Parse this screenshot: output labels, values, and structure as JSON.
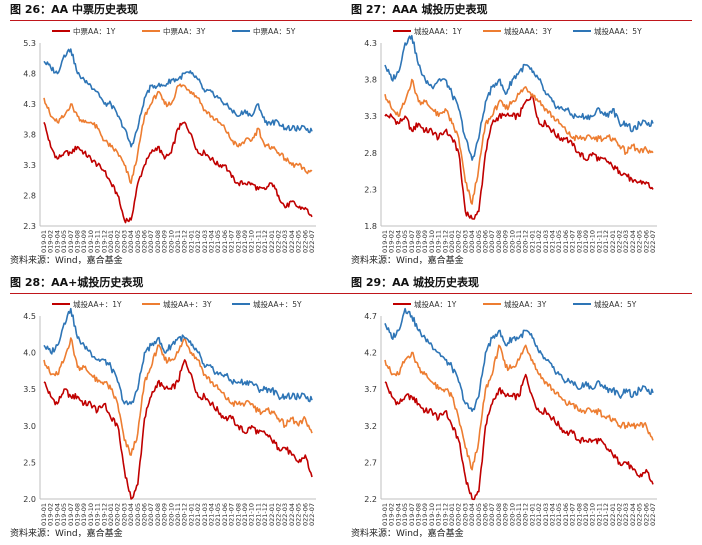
{
  "colors": {
    "s1": "#c00000",
    "s2": "#ed7d31",
    "s3": "#2e75b6",
    "rule": "#c0161b"
  },
  "x_ticks": [
    "2019-01",
    "2019-02",
    "2019-04",
    "2019-05",
    "2019-07",
    "2019-08",
    "2019-09",
    "2019-10",
    "2019-11",
    "2019-12",
    "2020-01",
    "2020-02",
    "2020-03",
    "2020-04",
    "2020-05",
    "2020-06",
    "2020-07",
    "2020-08",
    "2020-09",
    "2020-10",
    "2020-11",
    "2020-12",
    "2021-01",
    "2021-02",
    "2021-03",
    "2021-04",
    "2021-05",
    "2021-06",
    "2021-07",
    "2021-08",
    "2021-09",
    "2021-10",
    "2021-11",
    "2021-12",
    "2022-01",
    "2022-02",
    "2022-03",
    "2022-04",
    "2022-05",
    "2022-06",
    "2022-07"
  ],
  "chart_data": [
    {
      "type": "line",
      "title": "图 26：AA 中票历史表现",
      "source": "资料来源：Wind，嘉合基金",
      "ylim": [
        2.3,
        5.3
      ],
      "yticks": [
        "5.3",
        "4.8",
        "4.3",
        "3.8",
        "3.3",
        "2.8",
        "2.3"
      ],
      "series": [
        {
          "name": "中票AA：1Y",
          "values": [
            4.0,
            3.6,
            3.4,
            3.5,
            3.5,
            3.6,
            3.5,
            3.4,
            3.3,
            3.2,
            3.0,
            2.8,
            2.4,
            2.4,
            3.0,
            3.3,
            3.5,
            3.6,
            3.4,
            3.5,
            3.9,
            4.0,
            3.8,
            3.5,
            3.5,
            3.4,
            3.3,
            3.3,
            3.1,
            3.0,
            3.0,
            3.0,
            2.9,
            2.9,
            3.0,
            2.8,
            2.6,
            2.7,
            2.6,
            2.6,
            2.45
          ]
        },
        {
          "name": "中票AA：3Y",
          "values": [
            4.4,
            4.1,
            4.0,
            4.1,
            4.3,
            4.1,
            4.0,
            4.0,
            3.9,
            3.7,
            3.6,
            3.5,
            3.3,
            3.0,
            3.5,
            4.1,
            4.3,
            4.5,
            4.3,
            4.3,
            4.6,
            4.6,
            4.5,
            4.4,
            4.2,
            4.1,
            4.0,
            3.9,
            3.7,
            3.6,
            3.7,
            3.7,
            3.9,
            3.6,
            3.6,
            3.5,
            3.4,
            3.3,
            3.3,
            3.2,
            3.2
          ]
        },
        {
          "name": "中票AA：5Y",
          "values": [
            5.0,
            4.9,
            4.8,
            5.1,
            5.2,
            4.8,
            4.7,
            4.6,
            4.5,
            4.3,
            4.3,
            4.1,
            3.9,
            3.6,
            3.9,
            4.4,
            4.6,
            4.6,
            4.6,
            4.7,
            4.7,
            4.8,
            4.8,
            4.7,
            4.5,
            4.5,
            4.4,
            4.3,
            4.2,
            4.1,
            4.2,
            4.1,
            4.3,
            4.0,
            4.0,
            4.0,
            3.9,
            3.9,
            3.9,
            3.9,
            3.85
          ]
        }
      ]
    },
    {
      "type": "line",
      "title": "图 27：AAA 城投历史表现",
      "source": "资料来源：Wind，嘉合基金",
      "ylim": [
        1.8,
        4.3
      ],
      "yticks": [
        "4.3",
        "3.8",
        "3.3",
        "2.8",
        "2.3",
        "1.8"
      ],
      "series": [
        {
          "name": "城投AAA：1Y",
          "values": [
            3.3,
            3.3,
            3.2,
            3.3,
            3.1,
            3.2,
            3.1,
            3.1,
            3.0,
            3.1,
            3.0,
            2.8,
            2.0,
            1.9,
            2.0,
            2.8,
            3.2,
            3.3,
            3.3,
            3.3,
            3.3,
            3.5,
            3.6,
            3.2,
            3.2,
            3.1,
            3.0,
            3.0,
            2.9,
            2.8,
            2.7,
            2.8,
            2.7,
            2.7,
            2.6,
            2.55,
            2.5,
            2.4,
            2.4,
            2.4,
            2.3
          ]
        },
        {
          "name": "城投AAA：3Y",
          "values": [
            3.6,
            3.4,
            3.3,
            3.5,
            3.8,
            3.5,
            3.5,
            3.4,
            3.3,
            3.4,
            3.2,
            3.0,
            2.4,
            2.1,
            2.6,
            3.2,
            3.3,
            3.5,
            3.4,
            3.5,
            3.6,
            3.7,
            3.6,
            3.5,
            3.4,
            3.3,
            3.2,
            3.1,
            3.0,
            3.0,
            3.0,
            3.0,
            3.0,
            3.0,
            3.0,
            2.9,
            2.8,
            2.9,
            2.8,
            2.85,
            2.8
          ]
        },
        {
          "name": "城投AAA：5Y",
          "values": [
            4.0,
            3.8,
            3.9,
            4.3,
            4.4,
            4.0,
            3.8,
            3.7,
            3.8,
            3.8,
            3.6,
            3.4,
            3.0,
            2.7,
            3.0,
            3.5,
            3.7,
            3.8,
            3.6,
            3.8,
            3.9,
            4.0,
            3.9,
            3.8,
            3.6,
            3.5,
            3.4,
            3.4,
            3.3,
            3.3,
            3.3,
            3.3,
            3.4,
            3.3,
            3.4,
            3.2,
            3.2,
            3.1,
            3.2,
            3.2,
            3.2
          ]
        }
      ]
    },
    {
      "type": "line",
      "title": "图 28：AA+城投历史表现",
      "source": "资料来源：Wind，嘉合基金",
      "ylim": [
        2.0,
        4.5
      ],
      "yticks": [
        "4.5",
        "4.0",
        "3.5",
        "3.0",
        "2.5",
        "2.0"
      ],
      "series": [
        {
          "name": "城投AA+：1Y",
          "values": [
            3.6,
            3.4,
            3.3,
            3.5,
            3.4,
            3.4,
            3.3,
            3.3,
            3.2,
            3.3,
            3.1,
            3.0,
            2.4,
            2.0,
            2.2,
            3.1,
            3.4,
            3.6,
            3.5,
            3.5,
            3.6,
            3.9,
            3.7,
            3.4,
            3.4,
            3.3,
            3.2,
            3.1,
            3.1,
            3.0,
            2.9,
            3.0,
            2.9,
            2.9,
            2.8,
            2.7,
            2.7,
            2.6,
            2.5,
            2.6,
            2.3
          ]
        },
        {
          "name": "城投AA+：3Y",
          "values": [
            3.9,
            3.7,
            3.7,
            3.9,
            4.2,
            3.8,
            3.8,
            3.7,
            3.6,
            3.6,
            3.5,
            3.3,
            2.8,
            2.6,
            2.9,
            3.6,
            3.8,
            4.1,
            3.9,
            3.9,
            4.0,
            4.2,
            4.0,
            3.9,
            3.7,
            3.6,
            3.5,
            3.4,
            3.3,
            3.3,
            3.3,
            3.3,
            3.2,
            3.2,
            3.2,
            3.1,
            3.0,
            3.1,
            3.0,
            3.1,
            2.9
          ]
        },
        {
          "name": "城投AA+：5Y",
          "values": [
            4.1,
            4.0,
            4.1,
            4.4,
            4.6,
            4.2,
            4.1,
            4.0,
            3.9,
            3.9,
            3.8,
            3.6,
            3.3,
            3.3,
            3.5,
            4.0,
            4.1,
            4.2,
            4.0,
            4.1,
            4.2,
            4.2,
            4.1,
            4.0,
            3.8,
            3.8,
            3.7,
            3.7,
            3.6,
            3.6,
            3.6,
            3.6,
            3.5,
            3.5,
            3.5,
            3.4,
            3.4,
            3.4,
            3.4,
            3.4,
            3.35
          ]
        }
      ]
    },
    {
      "type": "line",
      "title": "图 29：AA 城投历史表现",
      "source": "资料来源：Wind，嘉合基金",
      "ylim": [
        2.2,
        4.7
      ],
      "yticks": [
        "4.7",
        "4.2",
        "3.7",
        "3.2",
        "2.7",
        "2.2"
      ],
      "series": [
        {
          "name": "城投AA：1Y",
          "values": [
            3.8,
            3.6,
            3.5,
            3.6,
            3.6,
            3.5,
            3.4,
            3.4,
            3.3,
            3.4,
            3.2,
            3.0,
            2.5,
            2.2,
            2.3,
            3.2,
            3.5,
            3.7,
            3.6,
            3.6,
            3.6,
            3.9,
            3.6,
            3.4,
            3.4,
            3.3,
            3.2,
            3.1,
            3.1,
            3.0,
            3.0,
            3.0,
            3.0,
            2.9,
            2.8,
            2.7,
            2.7,
            2.6,
            2.5,
            2.6,
            2.4
          ]
        },
        {
          "name": "城投AA：3Y",
          "values": [
            4.1,
            3.9,
            3.9,
            4.1,
            4.2,
            4.0,
            3.9,
            3.8,
            3.7,
            3.7,
            3.6,
            3.3,
            2.9,
            2.6,
            3.0,
            3.7,
            3.9,
            4.3,
            4.0,
            4.0,
            4.1,
            4.3,
            4.1,
            3.9,
            3.8,
            3.7,
            3.6,
            3.5,
            3.5,
            3.4,
            3.4,
            3.4,
            3.4,
            3.3,
            3.3,
            3.2,
            3.2,
            3.2,
            3.2,
            3.2,
            3.0
          ]
        },
        {
          "name": "城投AA：5Y",
          "values": [
            4.6,
            4.4,
            4.5,
            4.8,
            4.7,
            4.5,
            4.4,
            4.3,
            4.2,
            4.1,
            4.0,
            3.8,
            3.5,
            3.4,
            3.6,
            4.2,
            4.4,
            4.5,
            4.3,
            4.4,
            4.4,
            4.5,
            4.4,
            4.2,
            4.1,
            4.0,
            3.9,
            3.8,
            3.8,
            3.7,
            3.8,
            3.7,
            3.8,
            3.7,
            3.7,
            3.6,
            3.7,
            3.6,
            3.7,
            3.7,
            3.65
          ]
        }
      ]
    }
  ]
}
